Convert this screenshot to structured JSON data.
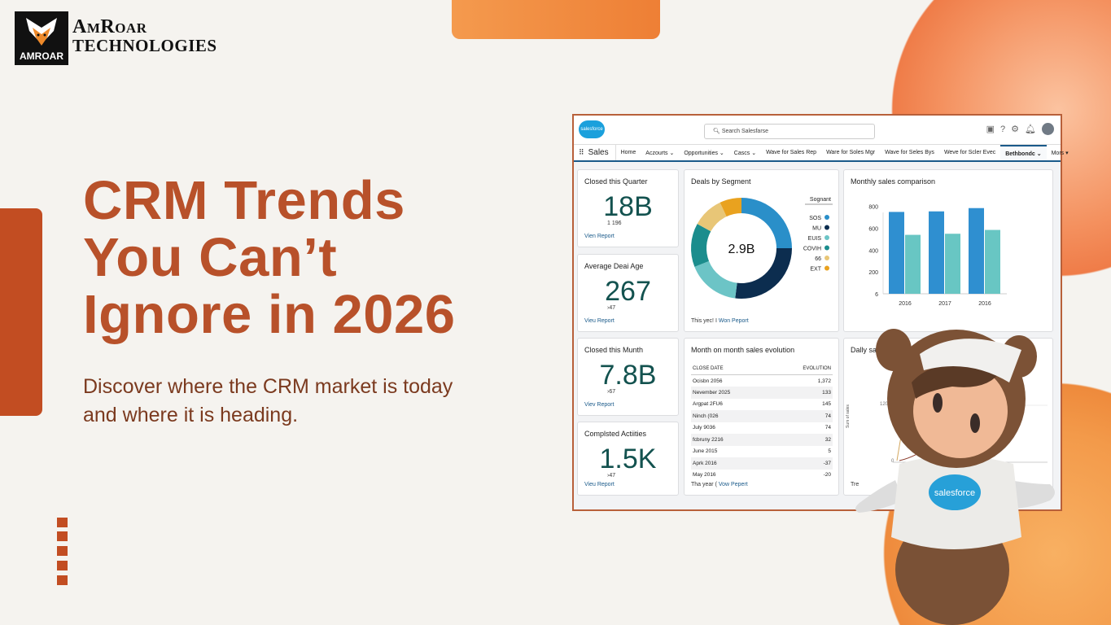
{
  "brand": {
    "logo_text": "AMROAR",
    "name_line1": "AmRoar",
    "name_line2": "TECHNOLOGIES"
  },
  "hero": {
    "title_lines": [
      "CRM Trends",
      "You Can’t",
      "Ignore in 2026"
    ],
    "subtitle_lines": [
      "Discover where the CRM market is today",
      "and where it is heading."
    ]
  },
  "colors": {
    "accent": "#c24d22",
    "title": "#b8512a",
    "subtitle": "#7b3a1f",
    "sf_blue": "#1ba0dc"
  },
  "dashboard": {
    "logo_text": "salesforce",
    "search_placeholder": "Search Salesfarse",
    "header_icons": [
      "app-icon",
      "help-icon",
      "gear-icon",
      "bell-icon",
      "avatar-icon"
    ],
    "app_name": "Sales",
    "nav": [
      {
        "label": "Home"
      },
      {
        "label": "Aczourts ⌄"
      },
      {
        "label": "Opportunities ⌄"
      },
      {
        "label": "Cascs ⌄"
      },
      {
        "label": "Wave for Sales Rep"
      },
      {
        "label": "Ware for Soles Mgr"
      },
      {
        "label": "Wave for Seles Bys"
      },
      {
        "label": "Weve for Scler Evec"
      },
      {
        "label": "Bethbondc ⌄",
        "active": true
      },
      {
        "label": "Mors ▾"
      }
    ],
    "kpis": [
      {
        "title": "Closed this Quarter",
        "value": "18B",
        "sub": "1 196",
        "link": "Vien Report"
      },
      {
        "title": "Average Deai Age",
        "value": "267",
        "sub": "›47",
        "link": "Vieu Report"
      },
      {
        "title": "Closed this Munth",
        "value": "7.8B",
        "sub": "›67",
        "link": "Viev Report"
      },
      {
        "title": "Complsted Actiities",
        "value": "1.5K",
        "sub": "›47",
        "link": "Vieu Report"
      }
    ],
    "donut_card": {
      "title": "Deals by Segment",
      "center": "2.9B",
      "legend_title": "Sognant",
      "footer_text": "This yec! I ",
      "footer_link": "Won Peport"
    },
    "bar_card": {
      "title": "Monthly sales comparison"
    },
    "table_card": {
      "title": "Month on month sales evolution",
      "columns": [
        "CLOSE DATE",
        "EVOLUTION"
      ],
      "rows": [
        [
          "Ocisbn 2056",
          "1,372"
        ],
        [
          "Nevember 2025",
          "133"
        ],
        [
          "Argpat 2FU6",
          "145"
        ],
        [
          "Ninch (026",
          "74"
        ],
        [
          "July 9036",
          "74"
        ],
        [
          "fcbruny 2216",
          "32"
        ],
        [
          "June 2015",
          "5"
        ],
        [
          "Aprk 2016",
          "-37"
        ],
        [
          "May 2016",
          "-20"
        ]
      ],
      "footer_text": "Tha year ( ",
      "footer_link": "Vow Pepert"
    },
    "daily_card": {
      "title": "Dally sales comparison",
      "y_label": "Sum of sales",
      "ticks": [
        "120m",
        "0"
      ],
      "footer": "Tre"
    }
  },
  "chart_data": [
    {
      "type": "pie",
      "title": "Deals by Segment",
      "legend_title": "Sognant",
      "legend": "right",
      "slices": [
        {
          "label": "SOS",
          "value": 25,
          "color": "#2a8fc9"
        },
        {
          "label": "MU",
          "value": 27,
          "color": "#0c2d4f"
        },
        {
          "label": "EUIS",
          "value": 17,
          "color": "#6cc4c6"
        },
        {
          "label": "COVIH",
          "value": 14,
          "color": "#1b8d8d"
        },
        {
          "label": "66",
          "value": 10,
          "color": "#e8c677"
        },
        {
          "label": "EXT",
          "value": 7,
          "color": "#e9a21f"
        }
      ]
    },
    {
      "type": "bar",
      "title": "Monthly sales comparison",
      "categories": [
        "2016",
        "2017",
        "2016"
      ],
      "series": [
        {
          "values": [
            750,
            755,
            785
          ],
          "color": "#2f8fd0"
        },
        {
          "values": [
            540,
            550,
            585
          ],
          "color": "#68c6c3"
        }
      ],
      "yticks": [
        "6",
        "200",
        "400",
        "600",
        "800"
      ],
      "ylim": [
        0,
        850
      ]
    }
  ],
  "mascot": {
    "shirt_text": "salesforce"
  }
}
